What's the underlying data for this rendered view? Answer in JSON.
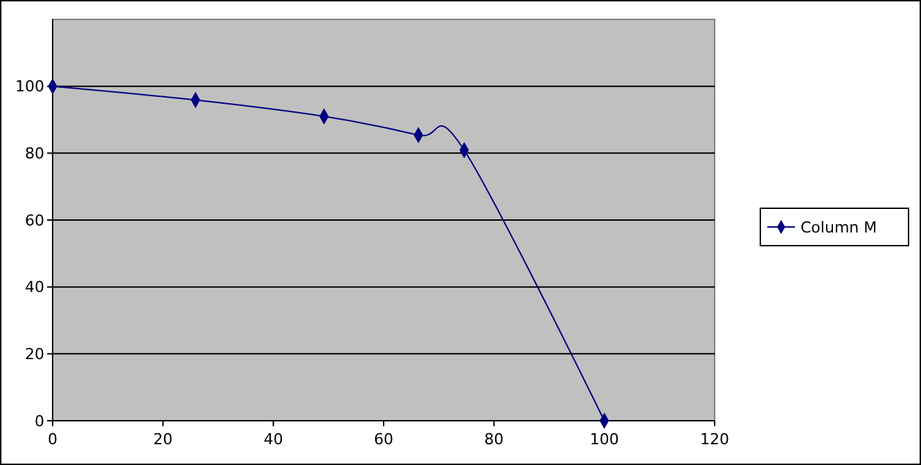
{
  "chart_data": {
    "type": "line",
    "x": [
      0,
      25.9,
      49.2,
      66.3,
      74.6,
      100
    ],
    "series": [
      {
        "name": "Column M",
        "color": "#000080",
        "values": [
          100,
          95.9,
          91.0,
          85.4,
          80.9,
          0
        ]
      }
    ],
    "xlim": [
      0,
      120
    ],
    "xticks": [
      0,
      20,
      40,
      60,
      80,
      100,
      120
    ],
    "ylim": [
      0,
      120
    ],
    "yticks": [
      0,
      20,
      40,
      60,
      80,
      100
    ],
    "grid": "y",
    "legend": "right",
    "marker": "diamond",
    "line_style": "solid"
  }
}
